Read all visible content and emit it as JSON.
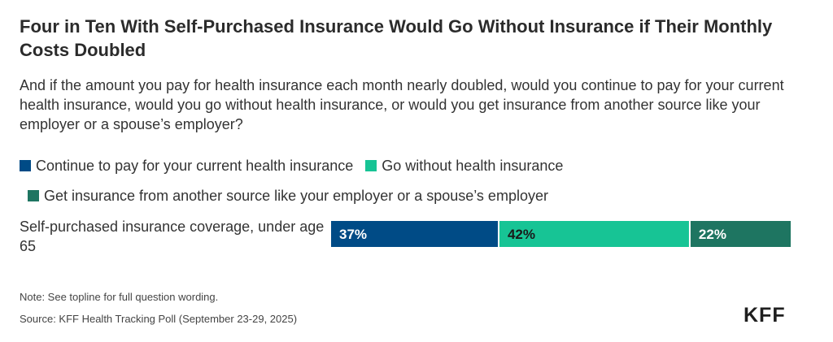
{
  "title": "Four in Ten With Self-Purchased Insurance Would Go Without Insurance if Their Monthly Costs Doubled",
  "subtitle": "And if the amount you pay for health insurance each month nearly doubled, would you continue to pay for your current health insurance, would you go without health insurance, or would you get insurance from another source like your employer or a spouse’s employer?",
  "note": "Note: See topline for full question wording.",
  "source": "Source: KFF Health Tracking Poll (September 23-29, 2025)",
  "logo": "KFF",
  "colors": {
    "continue": "#004b86",
    "go_without": "#17c495",
    "other_source": "#1e7561",
    "label_light": "#ffffff",
    "label_dark": "#1a1a1a"
  },
  "chart_data": {
    "type": "bar",
    "orientation": "horizontal",
    "stacked": true,
    "categories": [
      "Self-purchased insurance coverage, under age 65"
    ],
    "series": [
      {
        "name": "Continue to pay for your current health insurance",
        "values": [
          37
        ],
        "labels": [
          "37%"
        ],
        "color": "#004b86"
      },
      {
        "name": "Go without health insurance",
        "values": [
          42
        ],
        "labels": [
          "42%"
        ],
        "color": "#17c495"
      },
      {
        "name": "Get insurance from another source like your employer or a spouse’s employer",
        "values": [
          22
        ],
        "labels": [
          "22%"
        ],
        "color": "#1e7561"
      }
    ],
    "legend_position": "top",
    "grid": false
  }
}
